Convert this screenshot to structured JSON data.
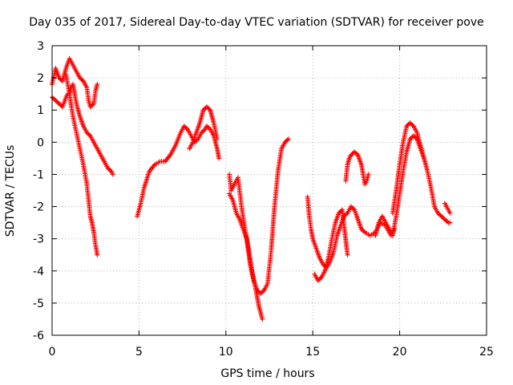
{
  "chart_data": {
    "type": "scatter",
    "title": "Day 035 of 2017, Sidereal Day-to-day VTEC variation (SDTVAR) for receiver pove",
    "xlabel": "GPS time / hours",
    "ylabel": "SDTVAR / TECUs",
    "xlim": [
      0,
      25
    ],
    "ylim": [
      -6,
      3
    ],
    "xticks": [
      "0",
      "5",
      "10",
      "15",
      "20",
      "25"
    ],
    "yticks": [
      "-6",
      "-5",
      "-4",
      "-3",
      "-2",
      "-1",
      "0",
      "1",
      "2",
      "3"
    ],
    "grid": true,
    "marker": "+",
    "color": "#ff0000",
    "series": [
      {
        "name": "seg1",
        "x": [
          0.0,
          0.2,
          0.4,
          0.6,
          0.8,
          1.0,
          1.2,
          1.4,
          1.6,
          1.8,
          2.0,
          2.1,
          2.2,
          2.4,
          2.5,
          2.6
        ],
        "y": [
          1.8,
          2.3,
          2.0,
          1.9,
          2.3,
          2.6,
          2.4,
          2.2,
          2.0,
          1.9,
          1.7,
          1.3,
          1.1,
          1.2,
          1.6,
          1.8
        ]
      },
      {
        "name": "seg2",
        "x": [
          0.0,
          0.2,
          0.4,
          0.6,
          0.8,
          0.9,
          1.0,
          1.1,
          1.2,
          1.3,
          1.4,
          1.6,
          1.8,
          2.0,
          2.2,
          2.4,
          2.6,
          2.8,
          3.0,
          3.2,
          3.4,
          3.5
        ],
        "y": [
          1.4,
          1.3,
          1.2,
          1.1,
          1.4,
          1.5,
          1.5,
          1.7,
          1.8,
          1.5,
          1.2,
          0.8,
          0.5,
          0.3,
          0.2,
          0.0,
          -0.2,
          -0.4,
          -0.6,
          -0.8,
          -0.9,
          -1.0
        ]
      },
      {
        "name": "seg3",
        "x": [
          0.8,
          1.0,
          1.2,
          1.4,
          1.6,
          1.8,
          2.0,
          2.1,
          2.2,
          2.3,
          2.4,
          2.5,
          2.6
        ],
        "y": [
          2.1,
          1.5,
          0.8,
          0.3,
          -0.2,
          -0.7,
          -1.3,
          -1.8,
          -2.3,
          -2.5,
          -2.8,
          -3.2,
          -3.5
        ]
      },
      {
        "name": "seg4",
        "x": [
          4.9,
          5.1,
          5.3,
          5.6,
          5.9,
          6.2,
          6.5,
          6.8,
          7.1,
          7.4,
          7.6,
          7.8,
          8.0,
          8.2,
          8.4,
          8.6,
          8.8,
          8.9,
          9.1,
          9.3,
          9.5,
          9.6
        ],
        "y": [
          -2.3,
          -1.9,
          -1.4,
          -0.9,
          -0.7,
          -0.6,
          -0.6,
          -0.4,
          -0.1,
          0.3,
          0.5,
          0.4,
          0.2,
          0.0,
          0.1,
          0.3,
          0.4,
          0.5,
          0.4,
          0.2,
          -0.2,
          -0.5
        ]
      },
      {
        "name": "seg5",
        "x": [
          7.9,
          8.1,
          8.3,
          8.5,
          8.7,
          8.9,
          9.1,
          9.3,
          9.5
        ],
        "y": [
          -0.2,
          0.0,
          0.3,
          0.6,
          1.0,
          1.1,
          1.0,
          0.6,
          0.1
        ]
      },
      {
        "name": "seg6",
        "x": [
          10.2,
          10.3,
          10.5,
          10.7,
          10.9,
          11.1,
          11.3,
          11.5,
          11.7,
          11.8,
          11.9,
          12.0,
          12.1
        ],
        "y": [
          -1.0,
          -1.5,
          -1.3,
          -1.1,
          -2.0,
          -2.7,
          -3.3,
          -4.0,
          -4.5,
          -4.8,
          -5.1,
          -5.3,
          -5.5
        ]
      },
      {
        "name": "seg7",
        "x": [
          10.2,
          10.4,
          10.6,
          10.8,
          11.0,
          11.2,
          11.4,
          11.6,
          11.8,
          12.0,
          12.2,
          12.4,
          12.6,
          12.8,
          13.0,
          13.2,
          13.4,
          13.6
        ],
        "y": [
          -1.6,
          -1.8,
          -2.2,
          -2.4,
          -2.7,
          -3.0,
          -3.8,
          -4.3,
          -4.6,
          -4.7,
          -4.6,
          -4.4,
          -3.4,
          -2.0,
          -0.9,
          -0.2,
          0.0,
          0.1
        ]
      },
      {
        "name": "seg8",
        "x": [
          14.7,
          14.8,
          14.9,
          15.0,
          15.2,
          15.4,
          15.6,
          15.8,
          16.0,
          16.2,
          16.4,
          16.6,
          16.8,
          17.0,
          17.2,
          17.4,
          17.6,
          17.8,
          18.0,
          18.3,
          18.6,
          18.9,
          19.2,
          19.5,
          19.7
        ],
        "y": [
          -1.7,
          -2.3,
          -2.7,
          -3.0,
          -3.3,
          -3.6,
          -3.8,
          -3.9,
          -3.7,
          -3.4,
          -2.9,
          -2.6,
          -2.3,
          -2.2,
          -2.0,
          -2.1,
          -2.4,
          -2.7,
          -2.8,
          -2.9,
          -2.8,
          -2.5,
          -2.6,
          -2.9,
          -2.7
        ]
      },
      {
        "name": "seg9",
        "x": [
          15.1,
          15.3,
          15.5,
          15.7,
          15.9,
          16.1,
          16.3,
          16.5,
          16.7,
          16.8,
          17.0
        ],
        "y": [
          -4.1,
          -4.3,
          -4.2,
          -4.0,
          -3.6,
          -3.0,
          -2.5,
          -2.2,
          -2.1,
          -2.6,
          -3.5
        ]
      },
      {
        "name": "seg10",
        "x": [
          16.9,
          17.0,
          17.1,
          17.2,
          17.4,
          17.6,
          17.8,
          17.9,
          18.0,
          18.1,
          18.2
        ],
        "y": [
          -1.2,
          -0.7,
          -0.5,
          -0.4,
          -0.3,
          -0.4,
          -0.7,
          -1.0,
          -1.3,
          -1.2,
          -1.0
        ]
      },
      {
        "name": "seg11",
        "x": [
          18.6,
          18.8,
          19.0,
          19.2,
          19.4,
          19.6,
          19.8,
          20.0,
          20.2,
          20.4,
          20.6,
          20.8,
          21.0,
          21.2,
          21.4,
          21.6,
          21.8,
          22.0,
          22.2,
          22.4,
          22.6,
          22.8,
          22.9
        ],
        "y": [
          -2.9,
          -2.5,
          -2.3,
          -2.5,
          -2.7,
          -2.9,
          -2.3,
          -1.6,
          -0.9,
          -0.3,
          0.1,
          0.2,
          0.1,
          -0.2,
          -0.5,
          -0.9,
          -1.4,
          -2.0,
          -2.2,
          -2.3,
          -2.4,
          -2.5,
          -2.5
        ]
      },
      {
        "name": "seg12",
        "x": [
          19.6,
          19.8,
          20.0,
          20.2,
          20.4,
          20.6,
          20.8,
          21.0,
          21.2,
          21.4
        ],
        "y": [
          -2.2,
          -1.5,
          -0.7,
          0.0,
          0.5,
          0.6,
          0.5,
          0.3,
          -0.1,
          -0.5
        ]
      },
      {
        "name": "seg13",
        "x": [
          22.6,
          22.7,
          22.8,
          22.9
        ],
        "y": [
          -1.9,
          -2.0,
          -2.1,
          -2.2
        ]
      }
    ]
  }
}
